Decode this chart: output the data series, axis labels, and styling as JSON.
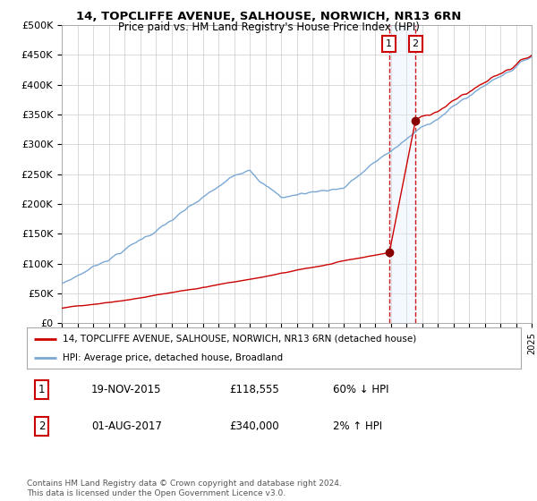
{
  "title": "14, TOPCLIFFE AVENUE, SALHOUSE, NORWICH, NR13 6RN",
  "subtitle": "Price paid vs. HM Land Registry's House Price Index (HPI)",
  "ylabel_ticks": [
    "£0",
    "£50K",
    "£100K",
    "£150K",
    "£200K",
    "£250K",
    "£300K",
    "£350K",
    "£400K",
    "£450K",
    "£500K"
  ],
  "ytick_values": [
    0,
    50000,
    100000,
    150000,
    200000,
    250000,
    300000,
    350000,
    400000,
    450000,
    500000
  ],
  "year_start": 1995,
  "year_end": 2025,
  "sale1_date": 2015.9,
  "sale1_price": 118555,
  "sale1_label": "1",
  "sale2_date": 2017.58,
  "sale2_price": 340000,
  "sale2_label": "2",
  "hpi_color": "#7aa8d4",
  "price_color": "#cc0000",
  "sale_point_color": "#880000",
  "annotation_box_color": "#cc0000",
  "shading_color": "#ddeeff",
  "legend_line1": "14, TOPCLIFFE AVENUE, SALHOUSE, NORWICH, NR13 6RN (detached house)",
  "legend_line2": "HPI: Average price, detached house, Broadland",
  "table_row1": [
    "1",
    "19-NOV-2015",
    "£118,555",
    "60% ↓ HPI"
  ],
  "table_row2": [
    "2",
    "01-AUG-2017",
    "£340,000",
    "2% ↑ HPI"
  ],
  "footnote": "Contains HM Land Registry data © Crown copyright and database right 2024.\nThis data is licensed under the Open Government Licence v3.0.",
  "background_color": "#ffffff"
}
